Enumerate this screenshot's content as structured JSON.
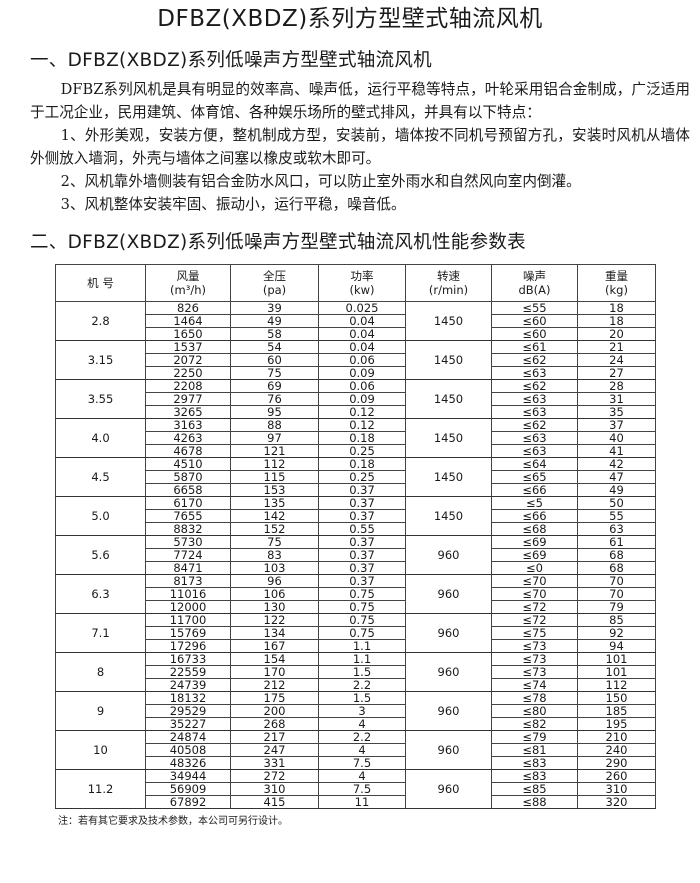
{
  "title": "DFBZ(XBDZ)系列方型壁式轴流风机",
  "section1": {
    "heading": "一、DFBZ(XBDZ)系列低噪声方型壁式轴流风机",
    "intro": "DFBZ系列风机是具有明显的效率高、噪声低，运行平稳等特点，叶轮采用铝合金制成，广泛适用于工况企业，民用建筑、体育馆、各种娱乐场所的壁式排风，并具有以下特点：",
    "points": [
      "1、外形美观，安装方便，整机制成方型，安装前，墙体按不同机号预留方孔，安装时风机从墙体外侧放入墙洞，外壳与墙体之间塞以橡皮或软木即可。",
      "2、风机靠外墙侧装有铝合金防水风口，可以防止室外雨水和自然风向室内倒灌。",
      "3、风机整体安装牢固、振动小，运行平稳，噪音低。"
    ]
  },
  "section2": {
    "heading": "二、DFBZ(XBDZ)系列低噪声方型壁式轴流风机性能参数表"
  },
  "table": {
    "headers": [
      {
        "label": "机 号",
        "unit": ""
      },
      {
        "label": "风量",
        "unit": "(m³/h)"
      },
      {
        "label": "全压",
        "unit": "(pa)"
      },
      {
        "label": "功率",
        "unit": "(kw)"
      },
      {
        "label": "转速",
        "unit": "(r/min)"
      },
      {
        "label": "噪声",
        "unit": "dB(A)"
      },
      {
        "label": "重量",
        "unit": "(kg)"
      }
    ],
    "groups": [
      {
        "model": "2.8",
        "speed": "1450",
        "rows": [
          [
            "826",
            "39",
            "0.025",
            "≤55",
            "18"
          ],
          [
            "1464",
            "49",
            "0.04",
            "≤60",
            "18"
          ],
          [
            "1650",
            "58",
            "0.04",
            "≤60",
            "20"
          ]
        ]
      },
      {
        "model": "3.15",
        "speed": "1450",
        "rows": [
          [
            "1537",
            "54",
            "0.04",
            "≤61",
            "21"
          ],
          [
            "2072",
            "60",
            "0.06",
            "≤62",
            "24"
          ],
          [
            "2250",
            "75",
            "0.09",
            "≤63",
            "27"
          ]
        ]
      },
      {
        "model": "3.55",
        "speed": "1450",
        "rows": [
          [
            "2208",
            "69",
            "0.06",
            "≤62",
            "28"
          ],
          [
            "2977",
            "76",
            "0.09",
            "≤63",
            "31"
          ],
          [
            "3265",
            "95",
            "0.12",
            "≤63",
            "35"
          ]
        ]
      },
      {
        "model": "4.0",
        "speed": "1450",
        "rows": [
          [
            "3163",
            "88",
            "0.12",
            "≤62",
            "37"
          ],
          [
            "4263",
            "97",
            "0.18",
            "≤63",
            "40"
          ],
          [
            "4678",
            "121",
            "0.25",
            "≤63",
            "41"
          ]
        ]
      },
      {
        "model": "4.5",
        "speed": "1450",
        "rows": [
          [
            "4510",
            "112",
            "0.18",
            "≤64",
            "42"
          ],
          [
            "5870",
            "115",
            "0.25",
            "≤65",
            "47"
          ],
          [
            "6658",
            "153",
            "0.37",
            "≤66",
            "49"
          ]
        ]
      },
      {
        "model": "5.0",
        "speed": "1450",
        "rows": [
          [
            "6170",
            "135",
            "0.37",
            "≤5",
            "50"
          ],
          [
            "7655",
            "142",
            "0.37",
            "≤66",
            "55"
          ],
          [
            "8832",
            "152",
            "0.55",
            "≤68",
            "63"
          ]
        ]
      },
      {
        "model": "5.6",
        "speed": "960",
        "rows": [
          [
            "5730",
            "75",
            "0.37",
            "≤69",
            "61"
          ],
          [
            "7724",
            "83",
            "0.37",
            "≤69",
            "68"
          ],
          [
            "8471",
            "103",
            "0.37",
            "≤0",
            "68"
          ]
        ]
      },
      {
        "model": "6.3",
        "speed": "960",
        "rows": [
          [
            "8173",
            "96",
            "0.37",
            "≤70",
            "70"
          ],
          [
            "11016",
            "106",
            "0.75",
            "≤70",
            "70"
          ],
          [
            "12000",
            "130",
            "0.75",
            "≤72",
            "79"
          ]
        ]
      },
      {
        "model": "7.1",
        "speed": "960",
        "rows": [
          [
            "11700",
            "122",
            "0.75",
            "≤72",
            "85"
          ],
          [
            "15769",
            "134",
            "0.75",
            "≤75",
            "92"
          ],
          [
            "17296",
            "167",
            "1.1",
            "≤73",
            "94"
          ]
        ]
      },
      {
        "model": "8",
        "speed": "960",
        "rows": [
          [
            "16733",
            "154",
            "1.1",
            "≤73",
            "101"
          ],
          [
            "22559",
            "170",
            "1.5",
            "≤73",
            "101"
          ],
          [
            "24739",
            "212",
            "2.2",
            "≤74",
            "112"
          ]
        ]
      },
      {
        "model": "9",
        "speed": "960",
        "rows": [
          [
            "18132",
            "175",
            "1.5",
            "≤78",
            "150"
          ],
          [
            "29529",
            "200",
            "3",
            "≤80",
            "185"
          ],
          [
            "35227",
            "268",
            "4",
            "≤82",
            "195"
          ]
        ]
      },
      {
        "model": "10",
        "speed": "960",
        "rows": [
          [
            "24874",
            "217",
            "2.2",
            "≤79",
            "210"
          ],
          [
            "40508",
            "247",
            "4",
            "≤81",
            "240"
          ],
          [
            "48326",
            "331",
            "7.5",
            "≤83",
            "290"
          ]
        ]
      },
      {
        "model": "11.2",
        "speed": "960",
        "rows": [
          [
            "34944",
            "272",
            "4",
            "≤83",
            "260"
          ],
          [
            "56909",
            "310",
            "7.5",
            "≤85",
            "310"
          ],
          [
            "67892",
            "415",
            "11",
            "≤88",
            "320"
          ]
        ]
      }
    ]
  },
  "note": "注：若有其它要求及技术参数，本公司可另行设计。"
}
